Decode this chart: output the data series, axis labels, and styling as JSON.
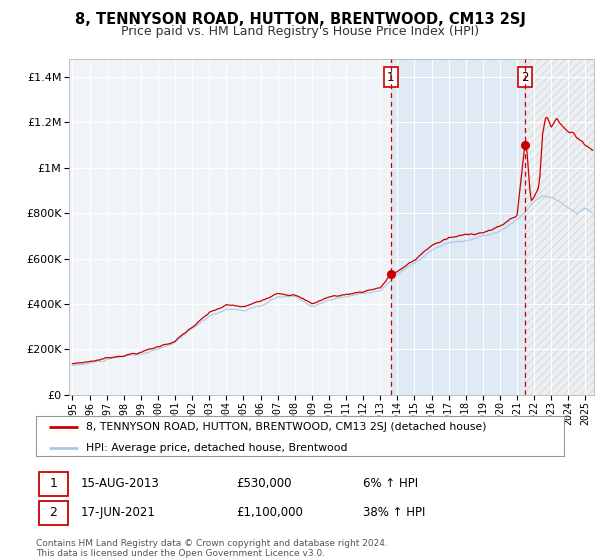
{
  "title": "8, TENNYSON ROAD, HUTTON, BRENTWOOD, CM13 2SJ",
  "subtitle": "Price paid vs. HM Land Registry's House Price Index (HPI)",
  "legend_line1": "8, TENNYSON ROAD, HUTTON, BRENTWOOD, CM13 2SJ (detached house)",
  "legend_line2": "HPI: Average price, detached house, Brentwood",
  "annotation1_year": 2013.62,
  "annotation1_value": 530000,
  "annotation1_text_date": "15-AUG-2013",
  "annotation1_text_price": "£530,000",
  "annotation1_text_hpi": "6% ↑ HPI",
  "annotation2_year": 2021.46,
  "annotation2_value": 1100000,
  "annotation2_text_date": "17-JUN-2021",
  "annotation2_text_price": "£1,100,000",
  "annotation2_text_hpi": "38% ↑ HPI",
  "footer1": "Contains HM Land Registry data © Crown copyright and database right 2024.",
  "footer2": "This data is licensed under the Open Government Licence v3.0.",
  "hpi_color": "#a8c8e8",
  "price_color": "#cc0000",
  "dot_color": "#cc0000",
  "dashed_color": "#cc0000",
  "bg_color": "#ffffff",
  "plot_bg": "#f0f4f8",
  "shade_color": "#dce9f5",
  "yticks": [
    0,
    200000,
    400000,
    600000,
    800000,
    1000000,
    1200000,
    1400000
  ],
  "ylim": [
    0,
    1480000
  ],
  "xlim_start": 1994.8,
  "xlim_end": 2025.5
}
